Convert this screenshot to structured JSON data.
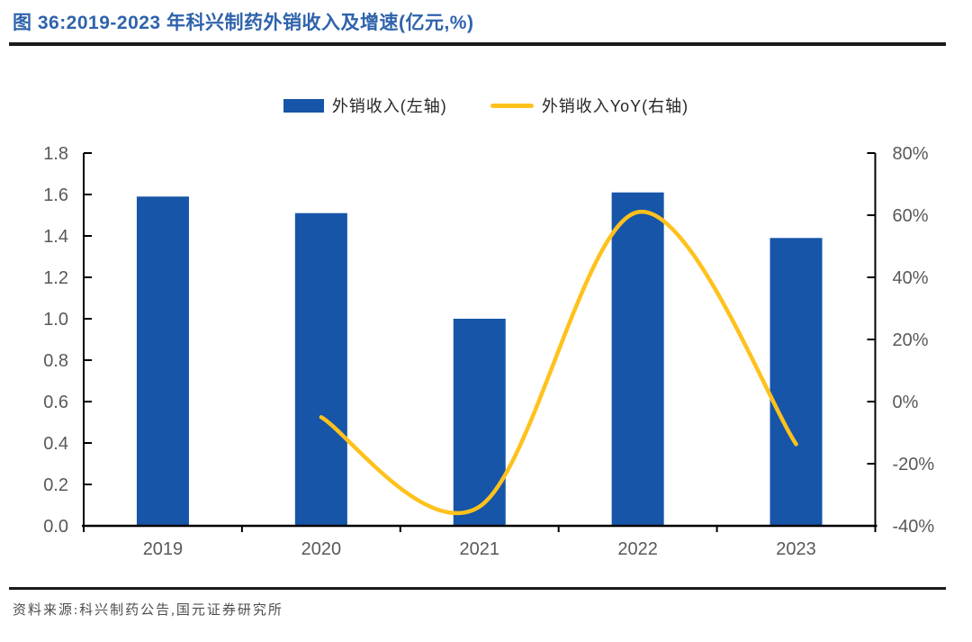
{
  "figure": {
    "title": "图 36:2019-2023 年科兴制药外销收入及增速(亿元,%)",
    "source": "资料来源:科兴制药公告,国元证券研究所"
  },
  "legend": [
    {
      "label": "外销收入(左轴)",
      "swatch": "bar-swatch"
    },
    {
      "label": "外销收入YoY(右轴)",
      "swatch": "line-swatch"
    }
  ],
  "colors": {
    "bar": "#1655A8",
    "line": "#FFC11C",
    "title_text": "#2F63AC",
    "axis_text": "#595959",
    "axis_line": "#000000",
    "rule": "#1A1A1A",
    "source_text": "#4D4D4D"
  },
  "chart_data": {
    "type": "bar+line-combo",
    "title": "2019-2023 年科兴制药外销收入及增速(亿元,%)",
    "categories": [
      "2019",
      "2020",
      "2021",
      "2022",
      "2023"
    ],
    "series": [
      {
        "name": "外销收入(左轴)",
        "type": "bar",
        "axis": "left",
        "unit": "亿元",
        "values": [
          1.59,
          1.51,
          1.0,
          1.61,
          1.39
        ]
      },
      {
        "name": "外销收入YoY(右轴)",
        "type": "line",
        "axis": "right",
        "unit": "%",
        "values": [
          null,
          -5.0,
          -33.8,
          61.0,
          -13.7
        ]
      }
    ],
    "left_axis": {
      "min": 0,
      "max": 1.8,
      "step": 0.2,
      "tick_labels": [
        "0.0",
        "0.2",
        "0.4",
        "0.6",
        "0.8",
        "1.0",
        "1.2",
        "1.4",
        "1.6",
        "1.8"
      ]
    },
    "right_axis": {
      "min": -40,
      "max": 80,
      "step": 20,
      "tick_labels": [
        "-40%",
        "-20%",
        "0%",
        "20%",
        "40%",
        "60%",
        "80%"
      ]
    },
    "grid": false,
    "legend_position": "top-center",
    "line_smoothing": true
  }
}
